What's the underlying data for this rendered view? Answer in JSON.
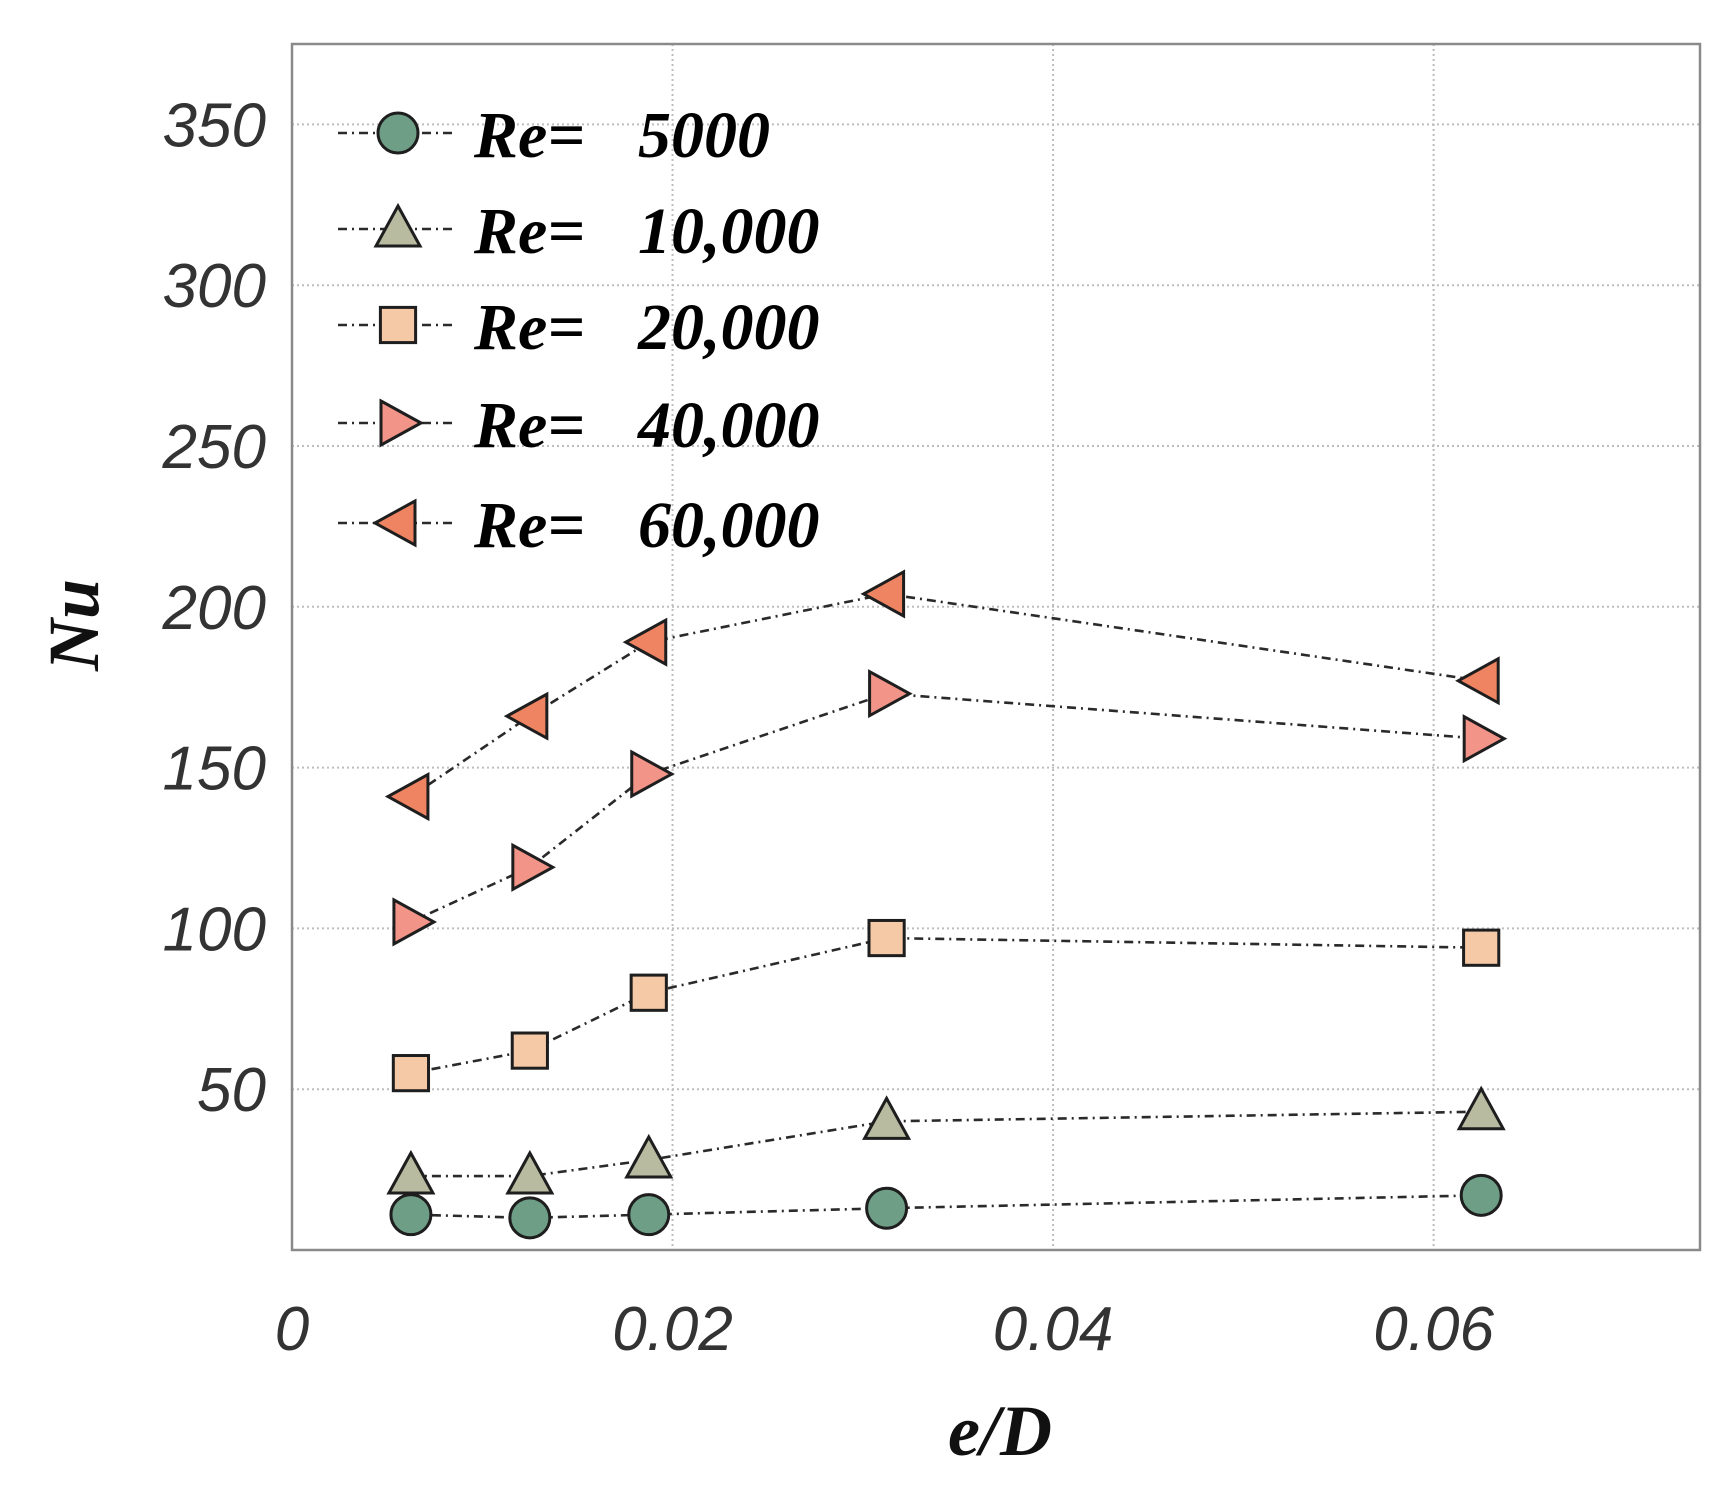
{
  "chart_data": {
    "type": "line",
    "title": "",
    "xlabel": "e/D",
    "ylabel": "Nu",
    "xlim": [
      0,
      0.074
    ],
    "ylim": [
      0,
      375
    ],
    "grid": true,
    "legend_position": "top-left",
    "x_ticks": [
      {
        "value": 0,
        "label": "0"
      },
      {
        "value": 0.02,
        "label": "0.02"
      },
      {
        "value": 0.04,
        "label": "0.04"
      },
      {
        "value": 0.06,
        "label": "0.06"
      }
    ],
    "y_ticks": [
      {
        "value": 50,
        "label": "50"
      },
      {
        "value": 100,
        "label": "100"
      },
      {
        "value": 150,
        "label": "150"
      },
      {
        "value": 200,
        "label": "200"
      },
      {
        "value": 250,
        "label": "250"
      },
      {
        "value": 300,
        "label": "300"
      },
      {
        "value": 350,
        "label": "350"
      }
    ],
    "x": [
      0.00625,
      0.0125,
      0.01875,
      0.03125,
      0.0625
    ],
    "series": [
      {
        "name": "Re= 5000",
        "legend_prefix": "Re=",
        "legend_value": "5000",
        "marker": "circle",
        "color": "#6e9e86",
        "values": [
          11,
          10,
          11,
          13,
          17
        ]
      },
      {
        "name": "Re= 10,000",
        "legend_prefix": "Re=",
        "legend_value": "10,000",
        "marker": "triangle-up",
        "color": "#b9bba0",
        "values": [
          23,
          23,
          28,
          40,
          43
        ]
      },
      {
        "name": "Re= 20,000",
        "legend_prefix": "Re=",
        "legend_value": "20,000",
        "marker": "square",
        "color": "#f6c9a6",
        "values": [
          55,
          62,
          80,
          97,
          94
        ]
      },
      {
        "name": "Re= 40,000",
        "legend_prefix": "Re=",
        "legend_value": "40,000",
        "marker": "triangle-right",
        "color": "#f29488",
        "values": [
          102,
          119,
          148,
          173,
          159
        ]
      },
      {
        "name": "Re= 60,000",
        "legend_prefix": "Re=",
        "legend_value": "60,000",
        "marker": "triangle-left",
        "color": "#ef8462",
        "values": [
          141,
          166,
          189,
          204,
          177
        ]
      }
    ]
  }
}
